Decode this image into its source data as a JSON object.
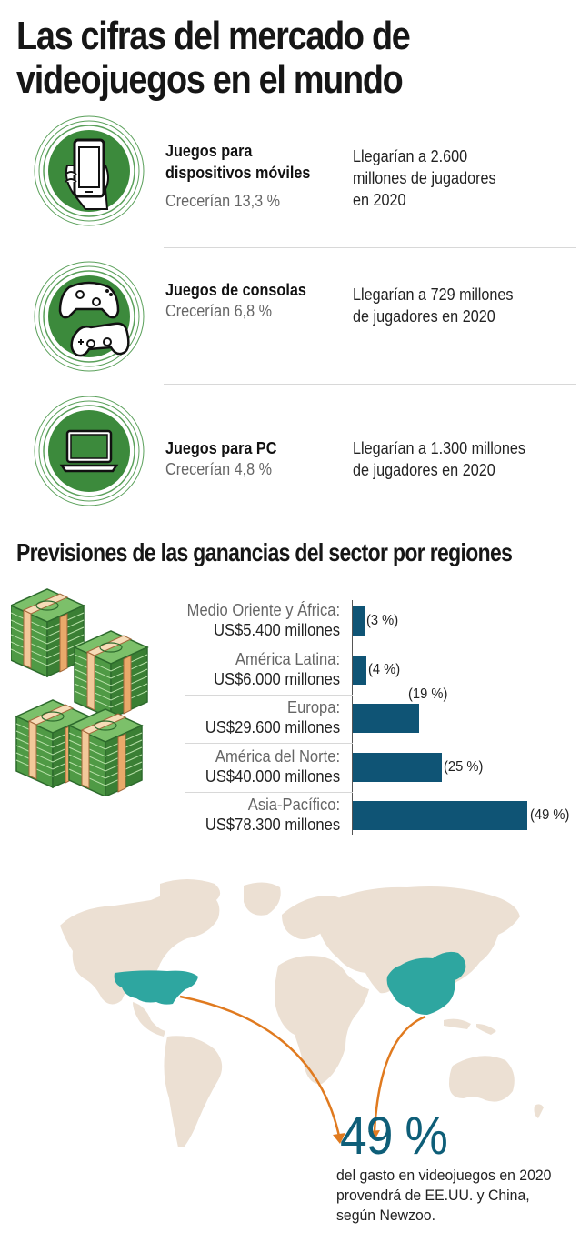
{
  "title_line1": "Las cifras del mercado de",
  "title_line2": "videojuegos en el mundo",
  "segments": [
    {
      "name_line1": "Juegos para",
      "name_line2": "dispositivos móviles",
      "growth": "Crecerían 13,3 %",
      "players_line1": "Llegarían a 2.600",
      "players_line2": "millones de jugadores",
      "players_line3": "en 2020",
      "icon": "smartphone-icon"
    },
    {
      "name_line1": "Juegos de consolas",
      "growth": "Crecerían 6,8 %",
      "players_line1": "Llegarían a 729 millones",
      "players_line2": "de jugadores en 2020",
      "icon": "gamepad-icon"
    },
    {
      "name_line1": "Juegos para PC",
      "growth": "Crecerían 4,8 %",
      "players_line1": "Llegarían a 1.300 millones",
      "players_line2": "de jugadores en 2020",
      "icon": "laptop-icon"
    }
  ],
  "regions_title": "Previsiones de las ganancias del sector por regiones",
  "chart_data": {
    "type": "bar",
    "orientation": "horizontal",
    "title": "Previsiones de las ganancias del sector por regiones",
    "categories": [
      "Medio Oriente y África:",
      "América Latina:",
      "Europa:",
      "América del Norte:",
      "Asia-Pacífico:"
    ],
    "value_labels": [
      "US$5.400 millones",
      "US$6.000 millones",
      "US$29.600 millones",
      "US$40.000 millones",
      "US$78.300 millones"
    ],
    "values": [
      5400,
      6000,
      29600,
      40000,
      78300
    ],
    "percents": [
      3,
      4,
      19,
      25,
      49
    ],
    "percent_labels": [
      "(3 %)",
      "(4 %)",
      "(19 %)",
      "(25 %)",
      "(49 %)"
    ],
    "unit": "US$ millones",
    "bar_color": "#0f5475"
  },
  "map": {
    "land_color": "#ece0d3",
    "highlight_color": "#2ea6a0",
    "arrow_color": "#e07a1f",
    "highlighted": [
      "EE.UU.",
      "China"
    ]
  },
  "share_value": "49 %",
  "share_text_line1": "del gasto en videojuegos en 2020",
  "share_text_line2": "provendrá de EE.UU. y China,",
  "share_text_line3": "según Newzoo.",
  "colors": {
    "accent_green": "#3c8a3c",
    "ring_green": "#5aa05a",
    "bar_blue": "#0f5475",
    "teal": "#2ea6a0",
    "orange": "#e07a1f"
  }
}
